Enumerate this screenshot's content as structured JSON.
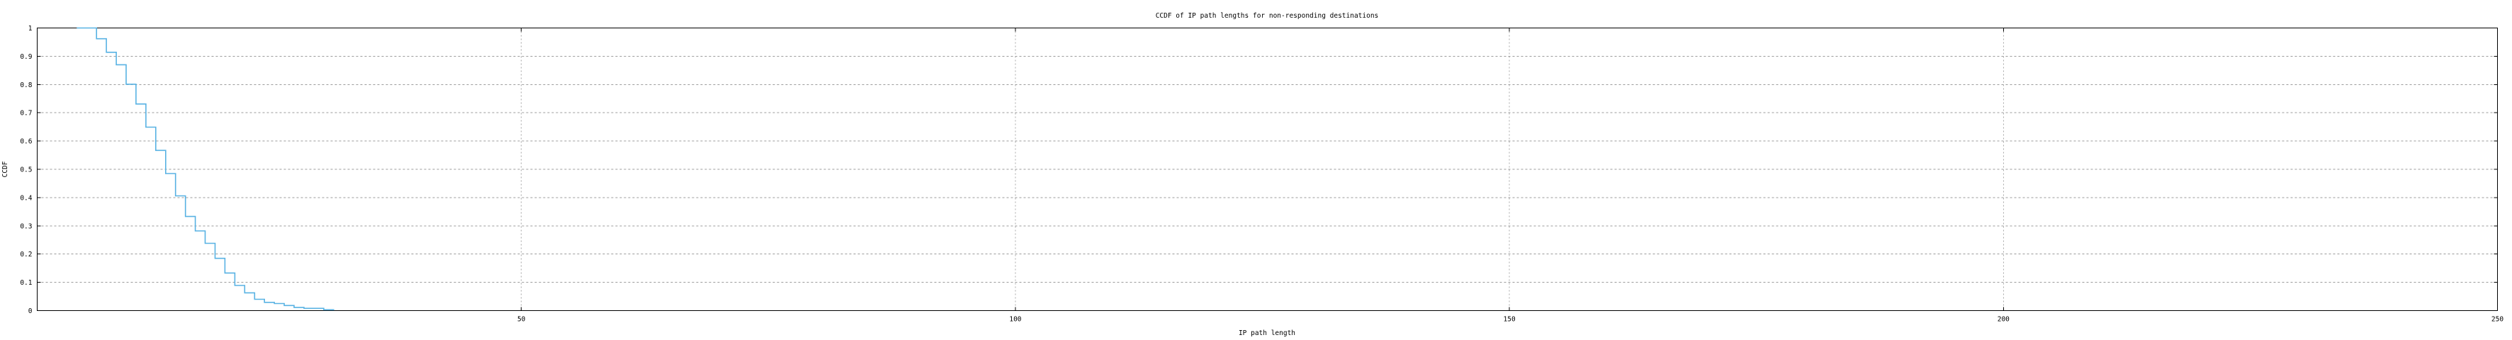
{
  "window": {
    "background": "#ffffff"
  },
  "colors": {
    "curve": "#58b2e3",
    "grid_horizontal": "#9b9b9b",
    "grid_vertical": "#a8a8a8",
    "axis": "#000000",
    "text": "#000000"
  },
  "chart_data": {
    "type": "line",
    "line_style": "steps",
    "title": "CCDF of IP path lengths for non-responding destinations",
    "xlabel": "IP path length",
    "ylabel": "CCDF",
    "xlim": [
      1,
      250
    ],
    "ylim": [
      0,
      1
    ],
    "grid": true,
    "legend_position": "none",
    "xticks": [
      {
        "v": 50,
        "label": "50"
      },
      {
        "v": 100,
        "label": "100"
      },
      {
        "v": 150,
        "label": "150"
      },
      {
        "v": 200,
        "label": "200"
      },
      {
        "v": 250,
        "label": "250"
      }
    ],
    "yticks": [
      {
        "v": 0,
        "label": "0"
      },
      {
        "v": 0.1,
        "label": "0.1"
      },
      {
        "v": 0.2,
        "label": "0.2"
      },
      {
        "v": 0.3,
        "label": "0.3"
      },
      {
        "v": 0.4,
        "label": "0.4"
      },
      {
        "v": 0.5,
        "label": "0.5"
      },
      {
        "v": 0.6,
        "label": "0.6"
      },
      {
        "v": 0.7,
        "label": "0.7"
      },
      {
        "v": 0.8,
        "label": "0.8"
      },
      {
        "v": 0.9,
        "label": "0.9"
      },
      {
        "v": 1,
        "label": "1"
      }
    ],
    "series": [
      {
        "name": "ccdf",
        "color": "#58b2e3",
        "points": [
          {
            "x": 5,
            "y": 1.0
          },
          {
            "x": 6,
            "y": 1.0
          },
          {
            "x": 7,
            "y": 0.962
          },
          {
            "x": 8,
            "y": 0.914
          },
          {
            "x": 9,
            "y": 0.87
          },
          {
            "x": 10,
            "y": 0.801
          },
          {
            "x": 11,
            "y": 0.731
          },
          {
            "x": 12,
            "y": 0.649
          },
          {
            "x": 13,
            "y": 0.567
          },
          {
            "x": 14,
            "y": 0.485
          },
          {
            "x": 15,
            "y": 0.406
          },
          {
            "x": 16,
            "y": 0.333
          },
          {
            "x": 17,
            "y": 0.282
          },
          {
            "x": 18,
            "y": 0.238
          },
          {
            "x": 19,
            "y": 0.185
          },
          {
            "x": 20,
            "y": 0.133
          },
          {
            "x": 21,
            "y": 0.089
          },
          {
            "x": 22,
            "y": 0.063
          },
          {
            "x": 23,
            "y": 0.04
          },
          {
            "x": 24,
            "y": 0.029
          },
          {
            "x": 25,
            "y": 0.025
          },
          {
            "x": 26,
            "y": 0.018
          },
          {
            "x": 27,
            "y": 0.011
          },
          {
            "x": 28,
            "y": 0.008
          },
          {
            "x": 29,
            "y": 0.008
          },
          {
            "x": 30,
            "y": 0.003
          },
          {
            "x": 31,
            "y": 0.001
          }
        ]
      }
    ]
  }
}
